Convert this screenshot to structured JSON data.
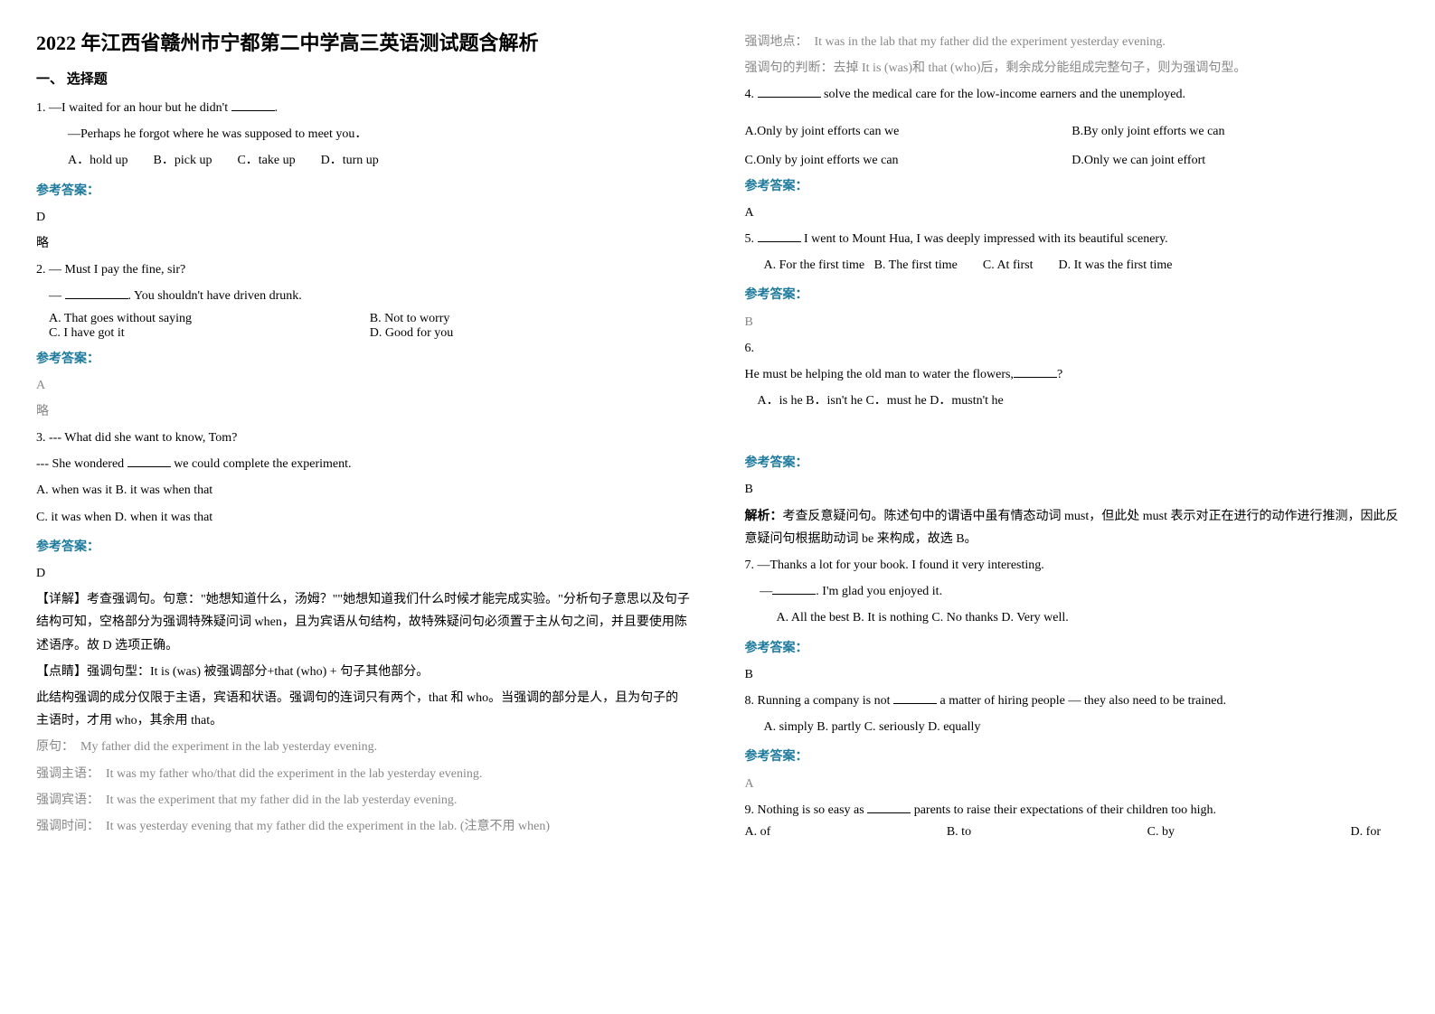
{
  "title": "2022 年江西省赣州市宁都第二中学高三英语测试题含解析",
  "section1": "一、 选择题",
  "q1": {
    "line1_prefix": "1. —I waited for an hour but he didn't ",
    "line1_suffix": ".",
    "line2": "—Perhaps he forgot where he was supposed to meet you．",
    "opts": "A．hold up        B．pick up        C．take up        D．turn up",
    "answer_label": "参考答案：",
    "answer": "D",
    "note": "略"
  },
  "q2": {
    "line1": "2. — Must I pay the fine, sir?",
    "line2_prefix": "— ",
    "line2_suffix": ". You shouldn't have driven drunk.",
    "optsA": "A. That goes without saying",
    "optsB": "B. Not to worry",
    "optsC": "C. I have got it",
    "optsD": "D. Good for you",
    "answer_label": "参考答案：",
    "answer": "A",
    "note": "略"
  },
  "q3": {
    "line1": "3. --- What did she want to know, Tom?",
    "line2_prefix": "--- She wondered ",
    "line2_suffix": " we could complete the experiment.",
    "optsAB": "A. when was it   B. it was when that",
    "optsCD": "C. it was when   D. when it was that",
    "answer_label": "参考答案：",
    "answer": "D",
    "exp1": "【详解】考查强调句。句意：\"她想知道什么，汤姆？\"\"她想知道我们什么时候才能完成实验。\"分析句子意思以及句子结构可知，空格部分为强调特殊疑问词 when，且为宾语从句结构，故特殊疑问句必须置于主从句之间，并且要使用陈述语序。故 D 选项正确。",
    "exp2": "【点睛】强调句型：It is (was) 被强调部分+that (who) + 句子其他部分。",
    "exp3": "此结构强调的成分仅限于主语，宾语和状语。强调句的连词只有两个，that 和 who。当强调的部分是人，且为句子的主语时，才用 who，其余用 that。",
    "orig_label": "原句：",
    "orig": "My father did the experiment in the lab yesterday evening.",
    "e_subj_label": "强调主语：",
    "e_subj": "It was my father who/that did the experiment in the lab yesterday evening.",
    "e_obj_label": "强调宾语：",
    "e_obj": "It was the experiment that my father did in the lab yesterday evening.",
    "e_time_label": "强调时间：",
    "e_time": "It was yesterday evening that my father did the experiment in the lab. (注意不用 when)",
    "e_place_label": "强调地点：",
    "e_place": "It was in the lab that my father did the experiment yesterday evening.",
    "judge": "强调句的判断：去掉 It is (was)和 that (who)后，剩余成分能组成完整句子，则为强调句型。"
  },
  "q4": {
    "line1_prefix": "4. ",
    "line1_suffix": " solve the medical care for the low-income earners and the unemployed.",
    "optA": "A.Only by joint efforts can we",
    "optB": "B.By only joint efforts we can",
    "optC": "C.Only by joint efforts we can",
    "optD": "D.Only we can joint effort",
    "answer_label": "参考答案：",
    "answer": "A"
  },
  "q5": {
    "line1_prefix": "5. ",
    "line1_suffix": " I went to Mount Hua, I was deeply impressed with its beautiful scenery.",
    "opts": "A. For the first time   B. The first time        C. At first        D. It was the first time",
    "answer_label": "参考答案：",
    "answer": "B"
  },
  "q6": {
    "num": "6.",
    "line1_prefix": "He must be helping the old man to water the flowers,",
    "line1_suffix": "?",
    "opts": "A．is he  B．isn't he  C．must he D．mustn't he",
    "answer_label": "参考答案：",
    "answer": "B",
    "exp_label": "解析：",
    "exp": "考查反意疑问句。陈述句中的谓语中虽有情态动词 must，但此处 must 表示对正在进行的动作进行推测，因此反意疑问句根据助动词 be 来构成，故选 B。"
  },
  "q7": {
    "line1": "7. —Thanks a lot for your book. I found it very interesting.",
    "line2_prefix": "—",
    "line2_suffix": ". I'm glad you enjoyed it.",
    "opts": "A. All the best  B. It is nothing  C. No thanks    D. Very well.",
    "answer_label": "参考答案：",
    "answer": "B"
  },
  "q8": {
    "line1_prefix": "8. Running a company is not ",
    "line1_suffix": " a matter of hiring people — they also need to be trained.",
    "opts": "A. simply     B. partly    C. seriously     D. equally",
    "answer_label": "参考答案：",
    "answer": "A"
  },
  "q9": {
    "line1_prefix": "9. Nothing is so easy as ",
    "line1_suffix": " parents to raise their expectations of their children too high.",
    "optA": "A. of",
    "optB": "B. to",
    "optC": "C. by",
    "optD": "D. for"
  }
}
